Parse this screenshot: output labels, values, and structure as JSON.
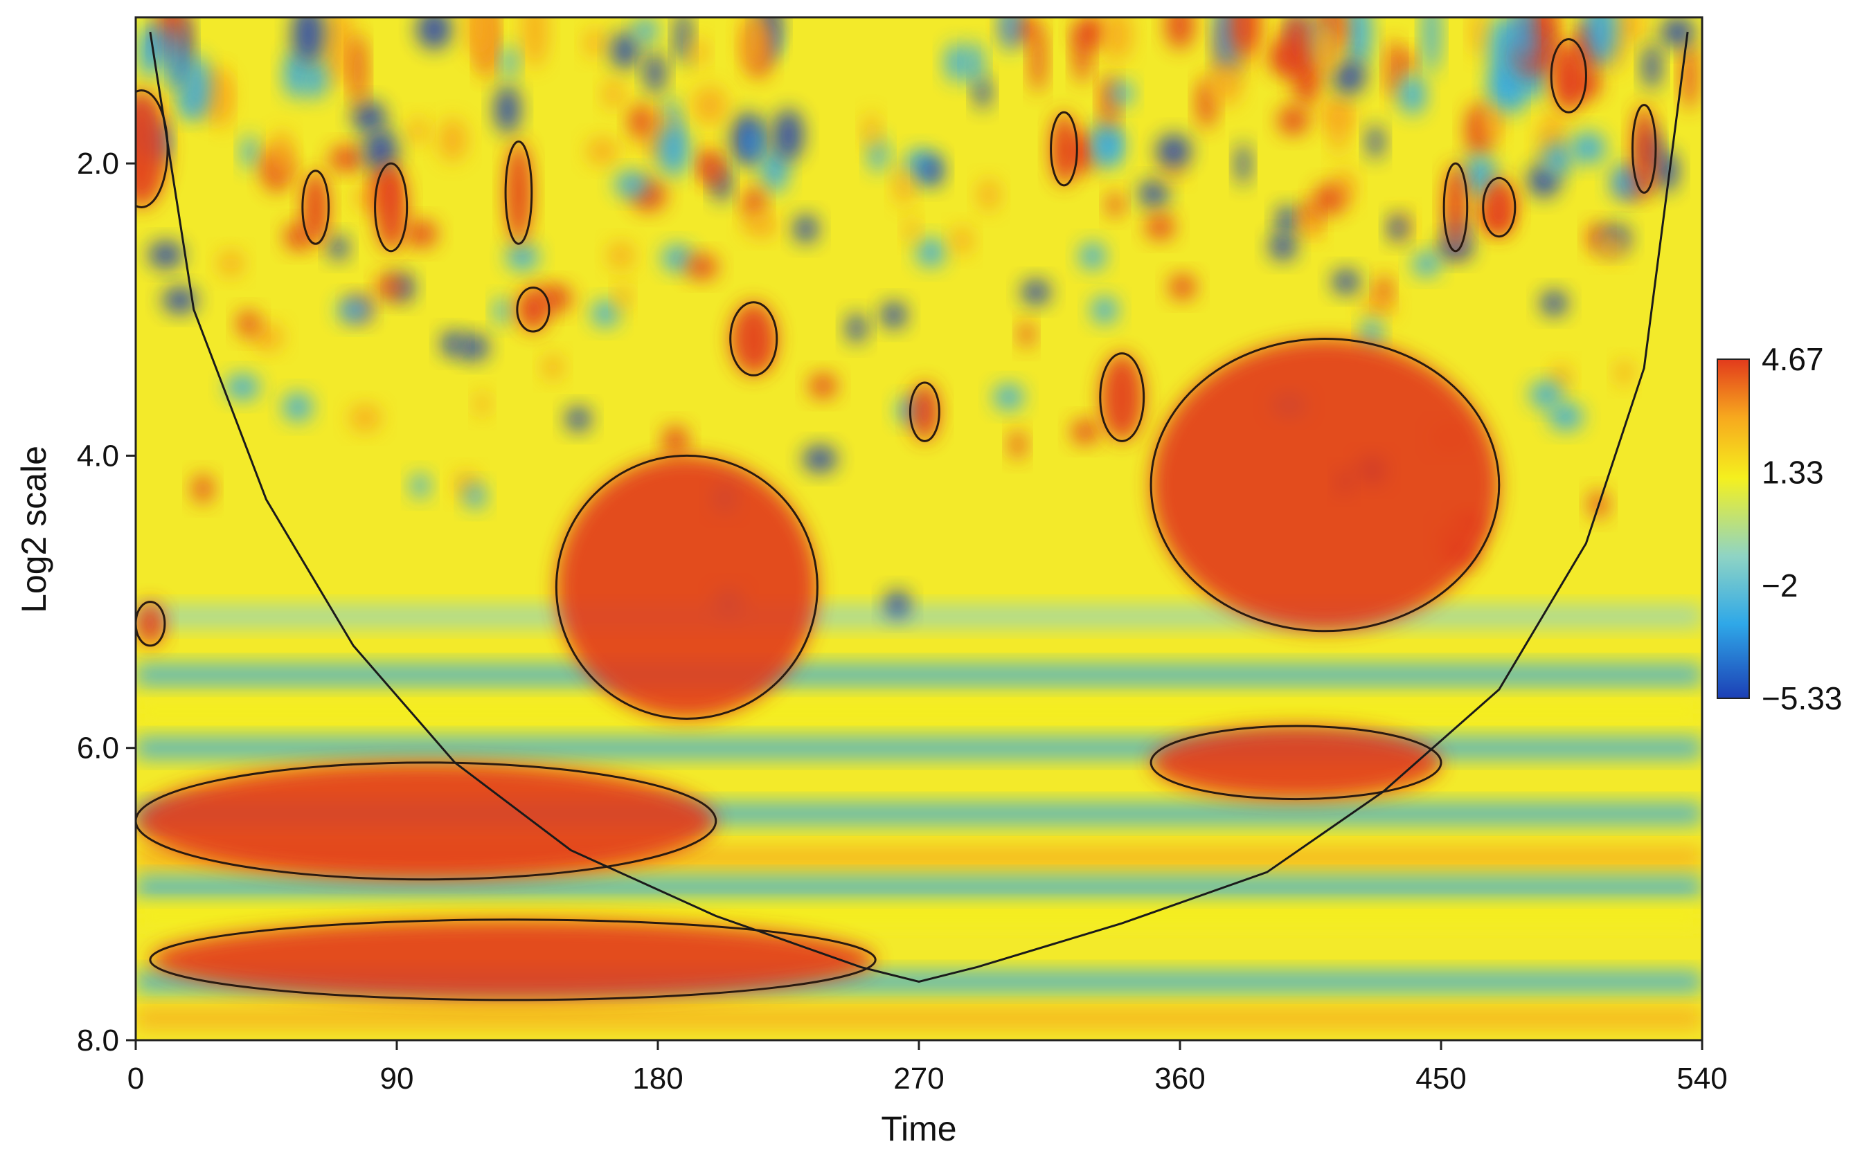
{
  "chart_data": {
    "type": "heatmap",
    "title": "",
    "xlabel": "Time",
    "ylabel": "Log2 scale",
    "xlim": [
      0,
      540
    ],
    "ylim": [
      1.0,
      8.0
    ],
    "y_inverted": true,
    "x_ticks": [
      0,
      90,
      180,
      270,
      360,
      450,
      540
    ],
    "x_tick_labels": [
      "0",
      "90",
      "180",
      "270",
      "360",
      "450",
      "540"
    ],
    "y_ticks": [
      2.0,
      4.0,
      6.0,
      8.0
    ],
    "y_tick_labels": [
      "2.0",
      "4.0",
      "6.0",
      "8.0"
    ],
    "colorbar": {
      "min": -5.33,
      "max": 4.67,
      "ticks": [
        4.67,
        1.33,
        -2,
        -5.33
      ],
      "tick_labels": [
        "4.67",
        "1.33",
        "−2",
        "−5.33"
      ],
      "colors": [
        "#1c3fb5",
        "#2fa8e8",
        "#8fd4c4",
        "#f5f01e",
        "#f7a81e",
        "#e23a1c"
      ]
    },
    "cone_of_influence": {
      "x": [
        5,
        20,
        45,
        75,
        110,
        150,
        200,
        250,
        270,
        290,
        340,
        390,
        430,
        470,
        500,
        520,
        535
      ],
      "y": [
        1.1,
        3.0,
        4.3,
        5.3,
        6.1,
        6.7,
        7.15,
        7.5,
        7.6,
        7.5,
        7.2,
        6.85,
        6.3,
        5.6,
        4.6,
        3.4,
        1.1
      ]
    },
    "high_power_regions": [
      {
        "time_center": 2,
        "scale_center": 1.9,
        "time_span": [
          0,
          18
        ],
        "scale_span": [
          1.4,
          2.2
        ]
      },
      {
        "time_center": 62,
        "scale_center": 2.3,
        "time_span": [
          57,
          66
        ],
        "scale_span": [
          2.0,
          2.5
        ]
      },
      {
        "time_center": 88,
        "scale_center": 2.3,
        "time_span": [
          82,
          93
        ],
        "scale_span": [
          2.0,
          2.6
        ]
      },
      {
        "time_center": 132,
        "scale_center": 2.2,
        "time_span": [
          128,
          137
        ],
        "scale_span": [
          1.8,
          2.5
        ]
      },
      {
        "time_center": 137,
        "scale_center": 3.0,
        "time_span": [
          132,
          143
        ],
        "scale_span": [
          2.9,
          3.2
        ]
      },
      {
        "time_center": 213,
        "scale_center": 3.2,
        "time_span": [
          206,
          222
        ],
        "scale_span": [
          3.0,
          3.5
        ]
      },
      {
        "time_center": 190,
        "scale_center": 4.9,
        "time_span": [
          145,
          235
        ],
        "scale_span": [
          4.0,
          5.8
        ]
      },
      {
        "time_center": 272,
        "scale_center": 3.7,
        "time_span": [
          268,
          278
        ],
        "scale_span": [
          3.5,
          3.9
        ]
      },
      {
        "time_center": 320,
        "scale_center": 1.9,
        "time_span": [
          316,
          325
        ],
        "scale_span": [
          1.6,
          2.1
        ]
      },
      {
        "time_center": 340,
        "scale_center": 3.6,
        "time_span": [
          333,
          348
        ],
        "scale_span": [
          3.3,
          3.9
        ]
      },
      {
        "time_center": 410,
        "scale_center": 4.2,
        "time_span": [
          350,
          470
        ],
        "scale_span": [
          3.1,
          5.1
        ]
      },
      {
        "time_center": 455,
        "scale_center": 2.3,
        "time_span": [
          451,
          459
        ],
        "scale_span": [
          2.0,
          2.6
        ]
      },
      {
        "time_center": 470,
        "scale_center": 2.3,
        "time_span": [
          465,
          476
        ],
        "scale_span": [
          2.1,
          2.5
        ]
      },
      {
        "time_center": 494,
        "scale_center": 1.4,
        "time_span": [
          488,
          500
        ],
        "scale_span": [
          1.1,
          1.6
        ]
      },
      {
        "time_center": 520,
        "scale_center": 1.9,
        "time_span": [
          516,
          524
        ],
        "scale_span": [
          1.6,
          2.2
        ]
      },
      {
        "time_center": 400,
        "scale_center": 6.1,
        "time_span": [
          365,
          465
        ],
        "scale_span": [
          5.85,
          6.35
        ]
      },
      {
        "time_center": 100,
        "scale_center": 6.5,
        "time_span": [
          0,
          200
        ],
        "scale_span": [
          6.1,
          6.9
        ]
      },
      {
        "time_center": 130,
        "scale_center": 7.45,
        "time_span": [
          0,
          250
        ],
        "scale_span": [
          7.2,
          7.75
        ]
      },
      {
        "time_center": 5,
        "scale_center": 5.15,
        "time_span": [
          0,
          10
        ],
        "scale_span": [
          5.0,
          5.3
        ]
      }
    ],
    "grid": false,
    "legend": "colorbar-right"
  }
}
